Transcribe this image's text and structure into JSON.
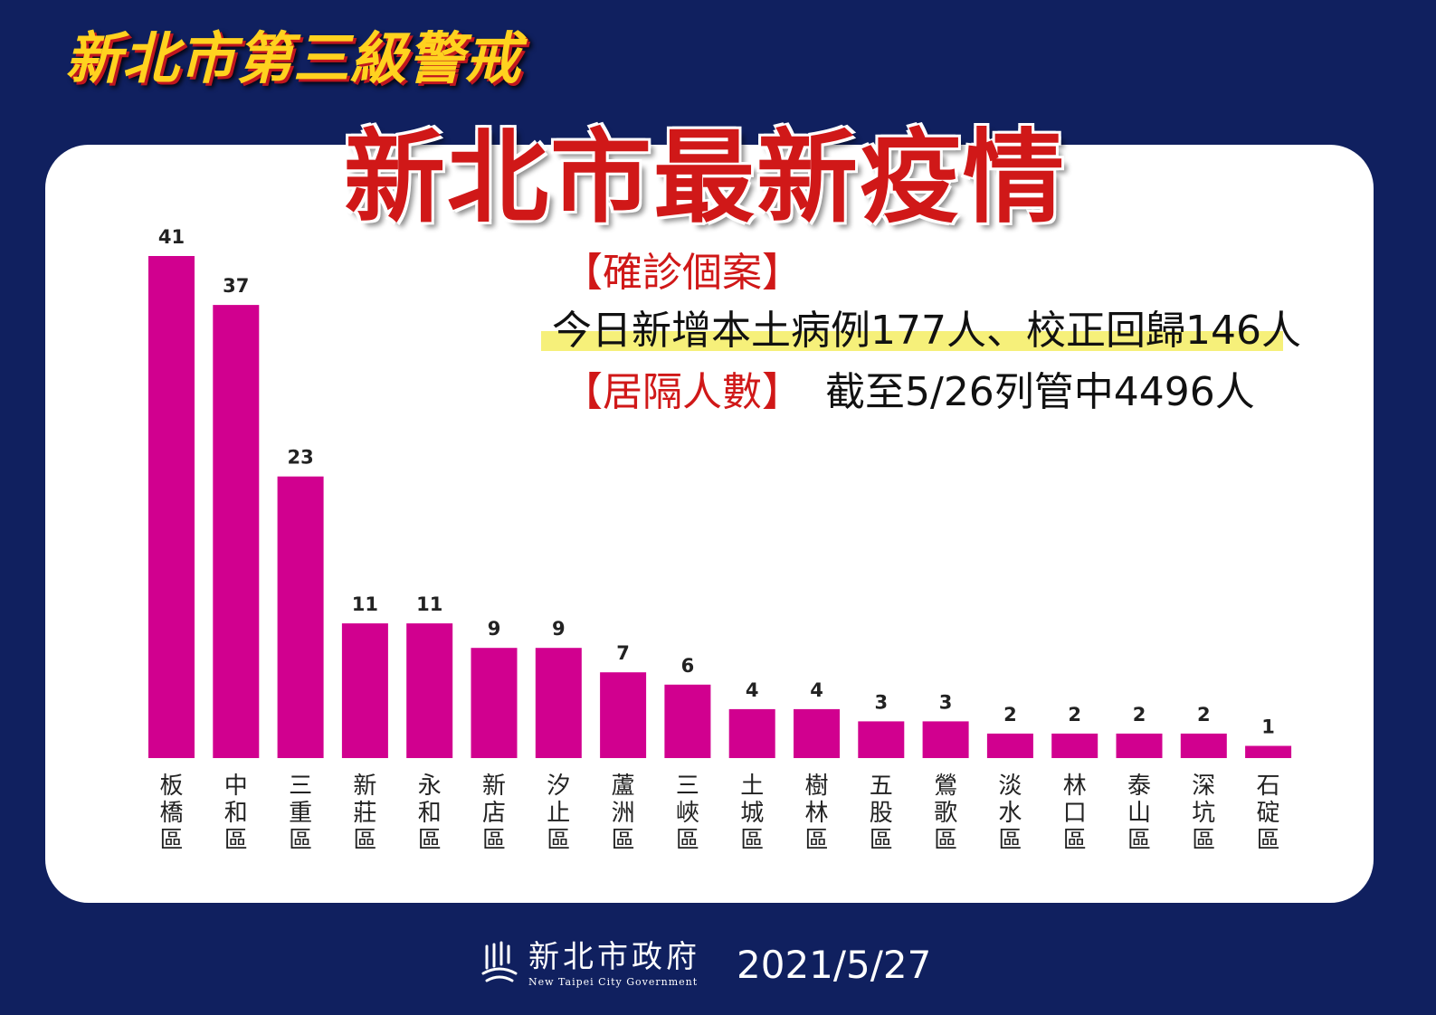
{
  "header": {
    "alert_level": "新北市第三級警戒",
    "title": "新北市最新疫情"
  },
  "summary": {
    "confirmed_heading": "【確診個案】",
    "daily_line": "今日新增本土病例177人、校正回歸146人",
    "quarantine_heading": "【居隔人數】",
    "quarantine_text": "截至5/26列管中4496人"
  },
  "footer": {
    "org_name": "新北市政府",
    "org_name_en": "New Taipei City Government",
    "date": "2021/5/27"
  },
  "colors": {
    "background": "#10205f",
    "bar": "#d1008f",
    "title_red": "#d01818",
    "alert_yellow": "#ffd21f"
  },
  "chart_data": {
    "type": "bar",
    "categories": [
      "板橋區",
      "中和區",
      "三重區",
      "新莊區",
      "永和區",
      "新店區",
      "汐止區",
      "蘆洲區",
      "三峽區",
      "土城區",
      "樹林區",
      "五股區",
      "鶯歌區",
      "淡水區",
      "林口區",
      "泰山區",
      "深坑區",
      "石碇區"
    ],
    "values": [
      41,
      37,
      23,
      11,
      11,
      9,
      9,
      7,
      6,
      4,
      4,
      3,
      3,
      2,
      2,
      2,
      2,
      1
    ],
    "ylim": [
      0,
      41
    ],
    "grid": false,
    "data_labels": true,
    "category_label_orientation": "vertical"
  }
}
